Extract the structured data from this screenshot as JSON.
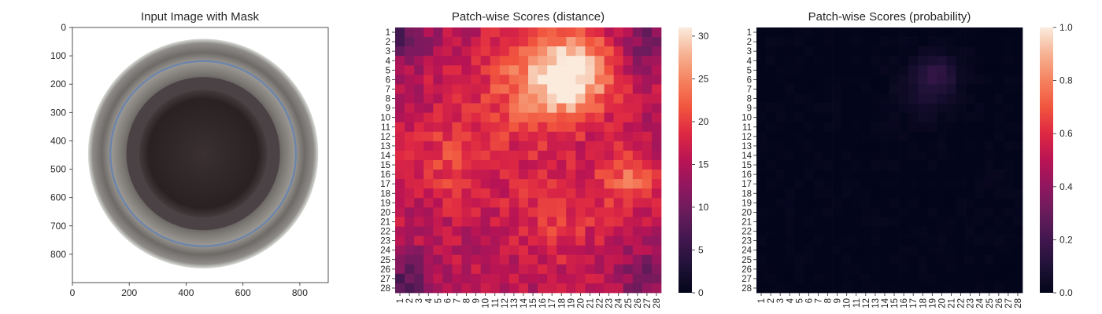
{
  "chart_data": [
    {
      "type": "image",
      "title": "Input Image with Mask",
      "xlim": [
        0,
        900
      ],
      "ylim": [
        900,
        0
      ],
      "xticks": [
        0,
        200,
        400,
        600,
        800
      ],
      "yticks": [
        0,
        100,
        200,
        300,
        400,
        500,
        600,
        700,
        800
      ],
      "object": {
        "description_shape": "circular bottle top view",
        "center": [
          460,
          445
        ],
        "outer_radius": 405,
        "inner_dark_radius": 225,
        "colors": {
          "rim": "#6e6b68",
          "inner": "#2d2426",
          "ring_blue": "#5a7fb5",
          "background": "#ffffff"
        }
      }
    },
    {
      "type": "heatmap",
      "title": "Patch-wise Scores (distance)",
      "rows": 28,
      "cols": 28,
      "row_labels": [
        "1",
        "2",
        "3",
        "4",
        "5",
        "6",
        "7",
        "8",
        "9",
        "10",
        "11",
        "12",
        "13",
        "14",
        "15",
        "16",
        "17",
        "18",
        "19",
        "20",
        "21",
        "22",
        "23",
        "24",
        "25",
        "26",
        "27",
        "28"
      ],
      "col_labels": [
        "1",
        "2",
        "3",
        "4",
        "5",
        "6",
        "7",
        "8",
        "9",
        "10",
        "11",
        "12",
        "13",
        "14",
        "15",
        "16",
        "17",
        "18",
        "19",
        "20",
        "21",
        "22",
        "23",
        "24",
        "25",
        "26",
        "27",
        "28"
      ],
      "colorbar": {
        "min": 0,
        "max": 31,
        "ticks": [
          0,
          5,
          10,
          15,
          20,
          25,
          30
        ],
        "colormap": "rocket"
      },
      "field": {
        "base": 15.5,
        "bumps": [
          {
            "row": 5.5,
            "col": 19.0,
            "amp": 15.0,
            "spread": 3.0
          },
          {
            "row": 7.0,
            "col": 14.5,
            "amp": 6.5,
            "spread": 4.0
          },
          {
            "row": 14.5,
            "col": 6.5,
            "amp": 4.5,
            "spread": 3.5
          },
          {
            "row": 16.5,
            "col": 25.0,
            "amp": 7.0,
            "spread": 2.2
          },
          {
            "row": 20.5,
            "col": 17.5,
            "amp": 4.0,
            "spread": 3.5
          },
          {
            "row": 1.0,
            "col": 1.0,
            "amp": -8.0,
            "spread": 2.0
          },
          {
            "row": 27.0,
            "col": 1.5,
            "amp": -7.0,
            "spread": 2.0
          },
          {
            "row": 2.0,
            "col": 27.5,
            "amp": -6.0,
            "spread": 2.0
          },
          {
            "row": 26.5,
            "col": 27.0,
            "amp": -5.0,
            "spread": 2.0
          }
        ],
        "noise": 2.6,
        "seed": 7
      },
      "peak_value": 30.5
    },
    {
      "type": "heatmap",
      "title": "Patch-wise Scores (probability)",
      "rows": 28,
      "cols": 28,
      "row_labels": [
        "1",
        "2",
        "3",
        "4",
        "5",
        "6",
        "7",
        "8",
        "9",
        "10",
        "11",
        "12",
        "13",
        "14",
        "15",
        "16",
        "17",
        "18",
        "19",
        "20",
        "21",
        "22",
        "23",
        "24",
        "25",
        "26",
        "27",
        "28"
      ],
      "col_labels": [
        "1",
        "2",
        "3",
        "4",
        "5",
        "6",
        "7",
        "8",
        "9",
        "10",
        "11",
        "12",
        "13",
        "14",
        "15",
        "16",
        "17",
        "18",
        "19",
        "20",
        "21",
        "22",
        "23",
        "24",
        "25",
        "26",
        "27",
        "28"
      ],
      "colorbar": {
        "min": 0.0,
        "max": 1.0,
        "ticks": [
          "0.0",
          "0.2",
          "0.4",
          "0.6",
          "0.8",
          "1.0"
        ],
        "colormap": "rocket"
      },
      "field": {
        "base": 0.0,
        "bumps": [
          {
            "row": 5.5,
            "col": 19.5,
            "amp": 0.13,
            "spread": 1.6
          },
          {
            "row": 7.5,
            "col": 18.0,
            "amp": 0.05,
            "spread": 2.2
          },
          {
            "row": 16.0,
            "col": 25.0,
            "amp": 0.03,
            "spread": 1.0
          }
        ],
        "noise": 0.015,
        "seed": 11
      }
    }
  ]
}
